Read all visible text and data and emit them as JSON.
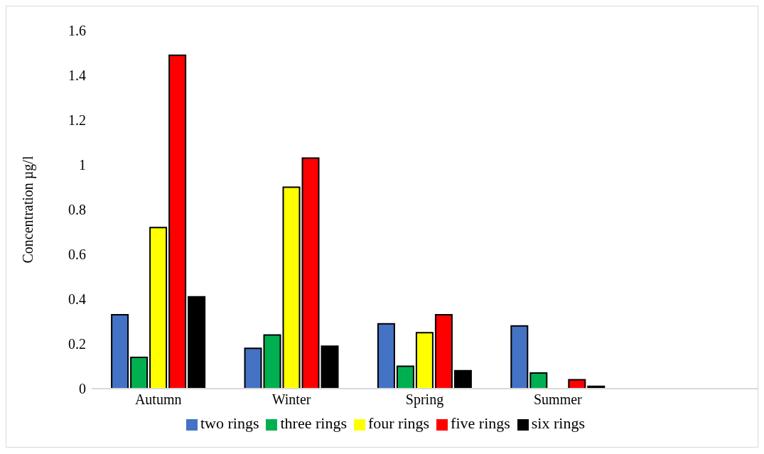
{
  "chart_data": {
    "type": "bar",
    "ylabel": "Concentration µg/l",
    "categories": [
      "Autumn",
      "Winter",
      "Spring",
      "Summer",
      null
    ],
    "series": [
      {
        "name": "two rings",
        "color": "#4472c4",
        "values": [
          0.33,
          0.18,
          0.29,
          0.28,
          null
        ]
      },
      {
        "name": "three rings",
        "color": "#00b050",
        "values": [
          0.14,
          0.24,
          0.1,
          0.07,
          null
        ]
      },
      {
        "name": "four rings",
        "color": "#ffff00",
        "values": [
          0.72,
          0.9,
          0.25,
          null,
          null
        ]
      },
      {
        "name": "five rings",
        "color": "#ff0000",
        "values": [
          1.49,
          1.03,
          0.33,
          0.04,
          null
        ]
      },
      {
        "name": "six rings",
        "color": "#000000",
        "values": [
          0.41,
          0.19,
          0.08,
          0.01,
          null
        ]
      }
    ],
    "ylim": [
      0,
      1.6
    ],
    "yticks": [
      0,
      0.2,
      0.4,
      0.6,
      0.8,
      1,
      1.2,
      1.4,
      1.6
    ],
    "grid": false,
    "legend": "bottom"
  }
}
